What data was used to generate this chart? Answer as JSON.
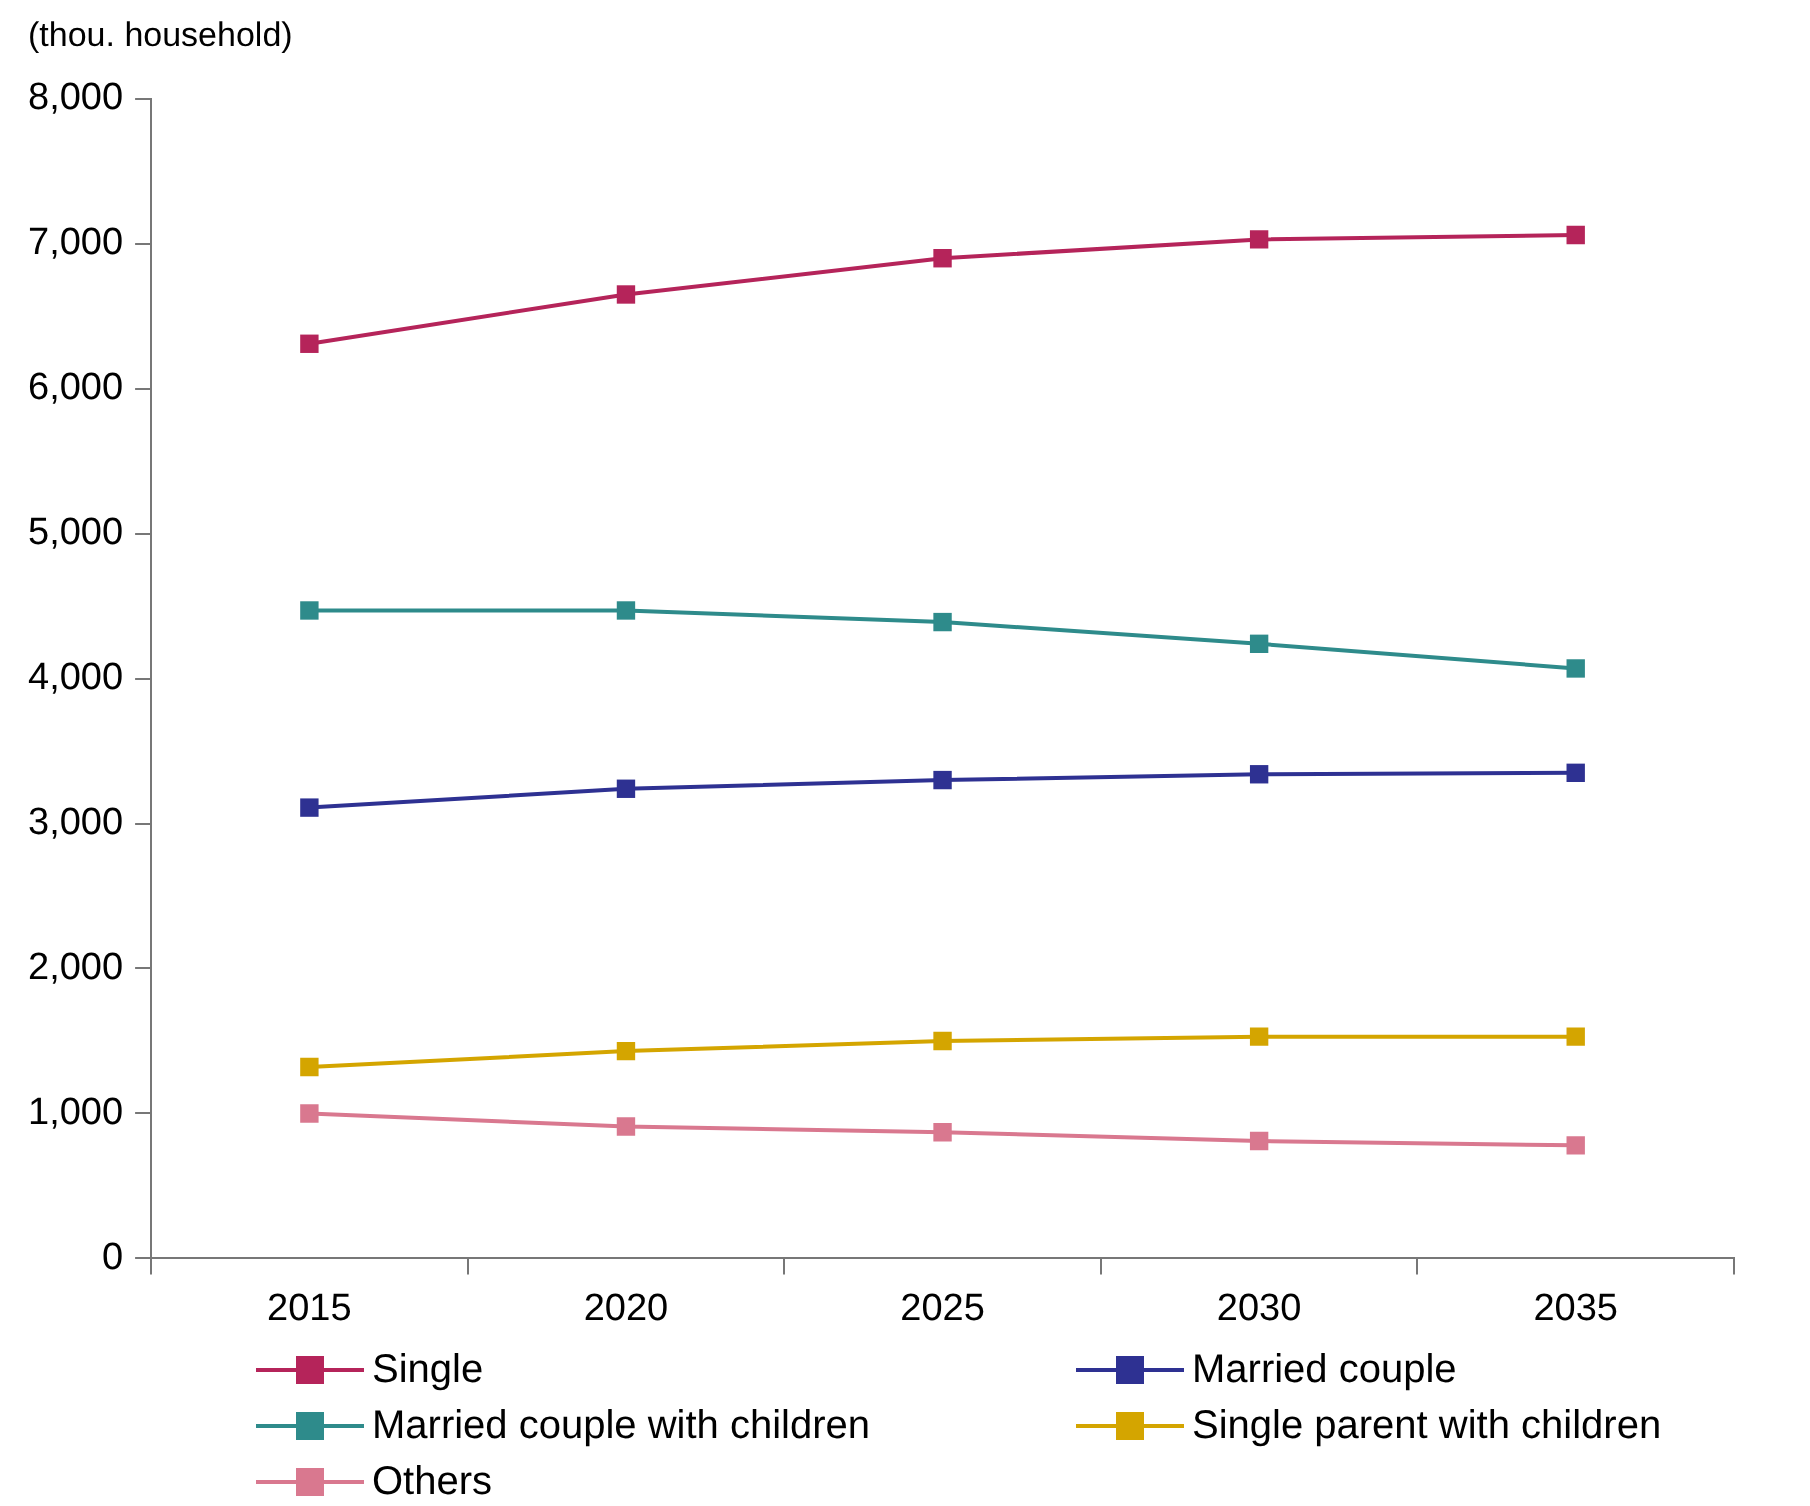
{
  "chart_data": {
    "type": "line",
    "ylabel": "(thou. household)",
    "categories": [
      "2015",
      "2020",
      "2025",
      "2030",
      "2035"
    ],
    "series": [
      {
        "name": "Single",
        "color": "#b5245a",
        "values": [
          6310,
          6650,
          6900,
          7030,
          7060
        ]
      },
      {
        "name": "Married couple",
        "color": "#2e3192",
        "values": [
          3110,
          3240,
          3300,
          3340,
          3350
        ]
      },
      {
        "name": "Married couple with children",
        "color": "#2e8b8b",
        "values": [
          4470,
          4470,
          4390,
          4240,
          4070
        ]
      },
      {
        "name": "Single parent with children",
        "color": "#d4a500",
        "values": [
          1320,
          1430,
          1500,
          1530,
          1530
        ]
      },
      {
        "name": "Others",
        "color": "#d9788f",
        "values": [
          1000,
          910,
          870,
          810,
          780
        ]
      }
    ],
    "ylim": [
      0,
      8000
    ],
    "yticks": [
      {
        "value": 0,
        "label": "0"
      },
      {
        "value": 1000,
        "label": "1,000"
      },
      {
        "value": 2000,
        "label": "2,000"
      },
      {
        "value": 3000,
        "label": "3,000"
      },
      {
        "value": 4000,
        "label": "4,000"
      },
      {
        "value": 5000,
        "label": "5,000"
      },
      {
        "value": 6000,
        "label": "6,000"
      },
      {
        "value": 7000,
        "label": "7,000"
      },
      {
        "value": 8000,
        "label": "8,000"
      }
    ],
    "legend": "bottom",
    "marker": "square",
    "line_style": "solid"
  }
}
